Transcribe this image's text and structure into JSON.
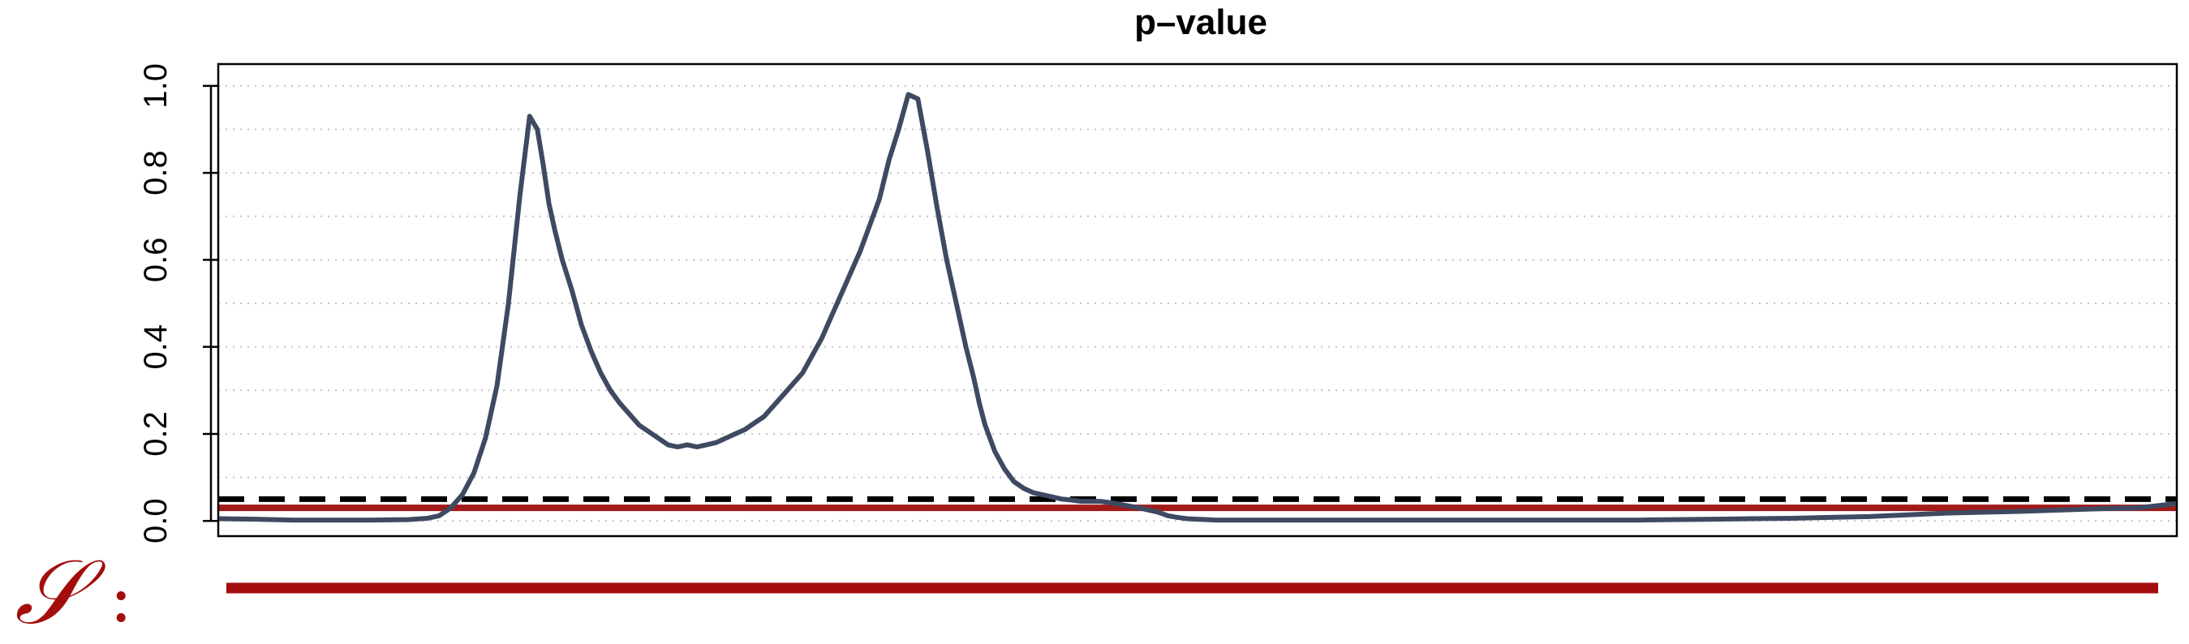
{
  "chart_data": {
    "type": "line",
    "title": "p–value",
    "xlabel": "",
    "ylabel": "",
    "ylim": [
      -0.035,
      1.05
    ],
    "yticks": [
      0.0,
      0.2,
      0.4,
      0.6,
      0.8,
      1.0
    ],
    "ytick_labels": [
      "0.0",
      "0.2",
      "0.4",
      "0.6",
      "0.8",
      "1.0"
    ],
    "grid": "horizontal dotted lines every 0.1",
    "x": [
      1,
      20,
      40,
      60,
      80,
      100,
      110,
      116,
      122,
      128,
      134,
      140,
      146,
      152,
      158,
      163,
      167,
      170,
      173,
      176,
      180,
      185,
      190,
      195,
      200,
      205,
      210,
      215,
      220,
      225,
      230,
      235,
      240,
      245,
      250,
      255,
      260,
      265,
      270,
      275,
      280,
      285,
      290,
      295,
      300,
      305,
      310,
      315,
      320,
      325,
      330,
      335,
      340,
      345,
      350,
      355,
      360,
      365,
      370,
      375,
      380,
      385,
      390,
      394,
      397,
      400,
      405,
      410,
      415,
      420,
      425,
      430,
      435,
      440,
      445,
      450,
      455,
      460,
      465,
      470,
      475,
      480,
      485,
      490,
      495,
      500,
      505,
      510,
      515,
      520,
      530,
      540,
      560,
      580,
      600,
      620,
      640,
      660,
      680,
      700,
      720,
      740,
      760,
      780,
      800,
      820,
      840,
      860,
      880,
      900,
      920,
      940,
      960,
      980,
      1000,
      1020
    ],
    "series": [
      {
        "color": "#3e4a61",
        "values": [
          0.005,
          0.004,
          0.002,
          0.002,
          0.002,
          0.003,
          0.006,
          0.012,
          0.03,
          0.06,
          0.11,
          0.19,
          0.31,
          0.5,
          0.75,
          0.93,
          0.9,
          0.82,
          0.73,
          0.67,
          0.6,
          0.53,
          0.45,
          0.39,
          0.34,
          0.3,
          0.27,
          0.245,
          0.22,
          0.205,
          0.19,
          0.175,
          0.17,
          0.175,
          0.17,
          0.175,
          0.18,
          0.19,
          0.2,
          0.21,
          0.225,
          0.24,
          0.265,
          0.29,
          0.315,
          0.34,
          0.38,
          0.42,
          0.47,
          0.52,
          0.57,
          0.62,
          0.68,
          0.74,
          0.83,
          0.9,
          0.98,
          0.97,
          0.85,
          0.72,
          0.6,
          0.5,
          0.4,
          0.33,
          0.27,
          0.22,
          0.16,
          0.12,
          0.09,
          0.075,
          0.065,
          0.06,
          0.055,
          0.05,
          0.048,
          0.045,
          0.045,
          0.045,
          0.042,
          0.038,
          0.034,
          0.03,
          0.025,
          0.02,
          0.012,
          0.008,
          0.005,
          0.004,
          0.003,
          0.002,
          0.002,
          0.002,
          0.002,
          0.002,
          0.002,
          0.002,
          0.002,
          0.002,
          0.002,
          0.002,
          0.002,
          0.002,
          0.003,
          0.004,
          0.005,
          0.006,
          0.008,
          0.01,
          0.014,
          0.018,
          0.02,
          0.022,
          0.025,
          0.028,
          0.03,
          0.04
        ]
      }
    ],
    "reference_lines": [
      {
        "y": 0.05,
        "style": "dashed",
        "color": "#000000"
      },
      {
        "y": 0.03,
        "style": "solid",
        "color": "#a11a1a"
      }
    ]
  },
  "segment_label": {
    "letter": "𝒮",
    "colon": ":",
    "color": "#a30d0d"
  }
}
